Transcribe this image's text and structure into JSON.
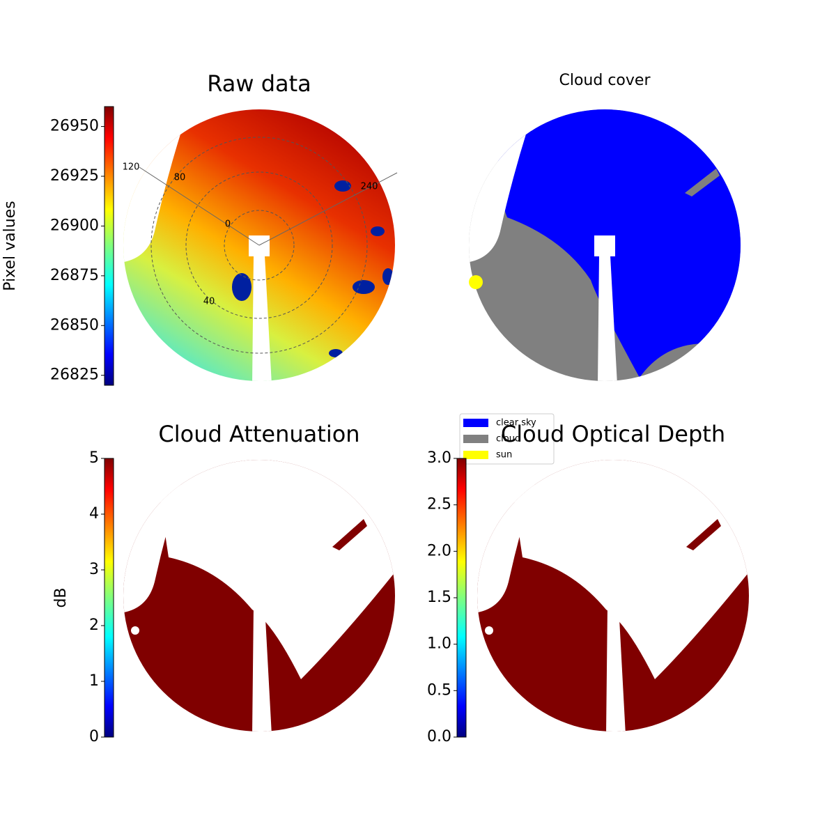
{
  "chart_data": [
    {
      "type": "image",
      "title": "Raw data",
      "colorbar_label": "Pixel values",
      "clim": [
        26820,
        26960
      ],
      "cticks": [
        26825,
        26850,
        26875,
        26900,
        26925,
        26950
      ],
      "colormap": "jet",
      "annotations": [
        "120",
        "80",
        "0",
        "240",
        "40"
      ]
    },
    {
      "type": "image",
      "title": "Cloud cover",
      "legend": [
        {
          "name": "clear sky",
          "color": "#0000ff"
        },
        {
          "name": "cloud",
          "color": "#808080"
        },
        {
          "name": "sun",
          "color": "#ffff00"
        }
      ]
    },
    {
      "type": "image",
      "title": "Cloud Attenuation",
      "colorbar_label": "dB",
      "clim": [
        0,
        5
      ],
      "cticks": [
        0,
        1,
        2,
        3,
        4,
        5
      ],
      "colormap": "jet"
    },
    {
      "type": "image",
      "title": "Cloud Optical Depth",
      "clim": [
        0,
        3
      ],
      "cticks": [
        {
          "value": 0,
          "label": "0.0"
        },
        {
          "value": 0.5,
          "label": "0.5"
        },
        {
          "value": 1,
          "label": "1.0"
        },
        {
          "value": 1.5,
          "label": "1.5"
        },
        {
          "value": 2,
          "label": "2.0"
        },
        {
          "value": 2.5,
          "label": "2.5"
        },
        {
          "value": 3,
          "label": "3.0"
        }
      ],
      "colormap": "jet"
    }
  ]
}
